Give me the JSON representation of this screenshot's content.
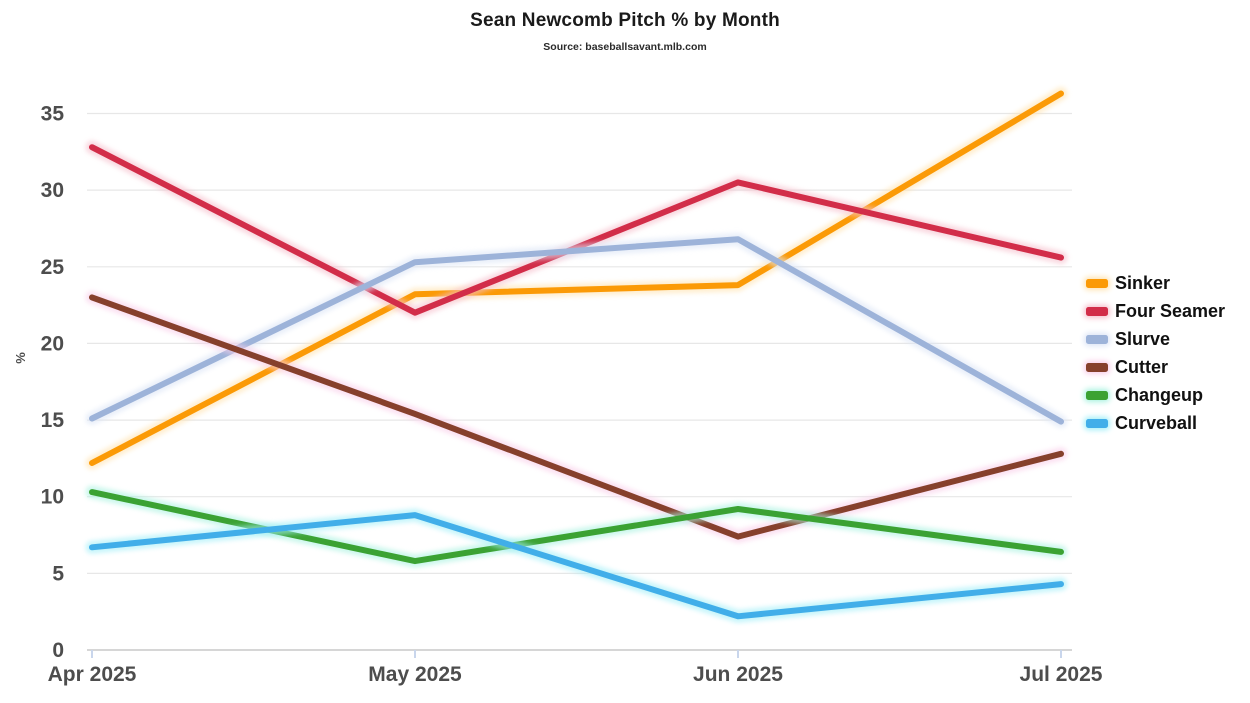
{
  "chart": {
    "title": "Sean Newcomb Pitch % by Month",
    "subtitle": "Source: baseballsavant.mlb.com"
  },
  "chart_data": {
    "type": "line",
    "title": "Sean Newcomb Pitch % by Month",
    "subtitle": "Source: baseballsavant.mlb.com",
    "x": [
      "Apr 2025",
      "May 2025",
      "Jun 2025",
      "Jul 2025"
    ],
    "xlabel": "",
    "ylabel": "%",
    "ylim": [
      0,
      37.5
    ],
    "yticks": [
      0,
      5,
      10,
      15,
      20,
      25,
      30,
      35
    ],
    "grid": true,
    "legend_position": "right",
    "series": [
      {
        "name": "Sinker",
        "color": "#FB9A06",
        "glow": "#FFE3B0",
        "values": [
          12.2,
          23.2,
          23.8,
          36.3
        ]
      },
      {
        "name": "Four Seamer",
        "color": "#D22D49",
        "glow": "#F6BFCC",
        "values": [
          32.8,
          22.0,
          30.5,
          25.6
        ]
      },
      {
        "name": "Slurve",
        "color": "#9DB3D9",
        "glow": "#DCE5F6",
        "values": [
          15.1,
          25.3,
          26.8,
          14.9
        ]
      },
      {
        "name": "Cutter",
        "color": "#86402C",
        "glow": "#F9CDE9",
        "values": [
          23.0,
          15.4,
          7.4,
          12.8
        ]
      },
      {
        "name": "Changeup",
        "color": "#3BA233",
        "glow": "#A9F2E0",
        "values": [
          10.3,
          5.8,
          9.2,
          6.4
        ]
      },
      {
        "name": "Curveball",
        "color": "#41AEE9",
        "glow": "#A3EFF8",
        "values": [
          6.7,
          8.8,
          2.2,
          4.3
        ]
      }
    ],
    "axis_colors": {
      "gridline": "#e7e7e7",
      "baseline": "#c9c9c9",
      "tick_mark": "#c9d6ec",
      "tick_label": "#4d4d4d"
    }
  }
}
